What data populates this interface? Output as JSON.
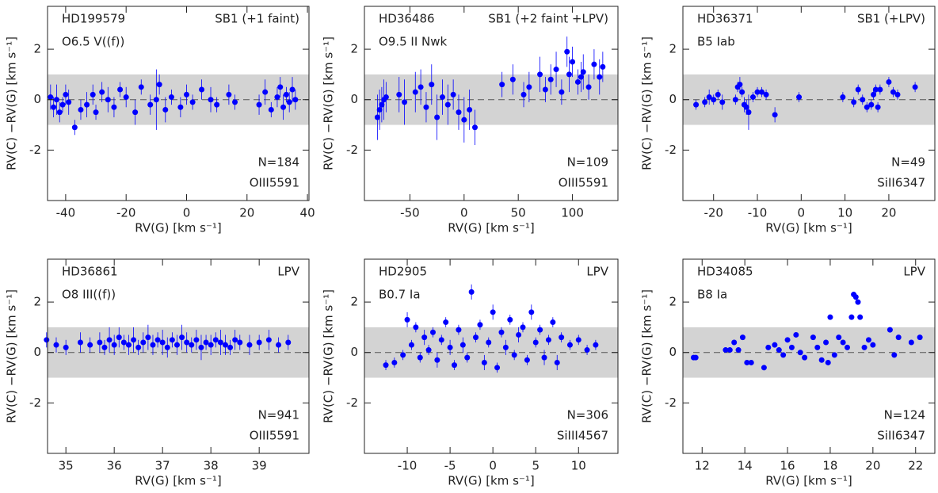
{
  "chart_data": [
    {
      "type": "scatter",
      "name": "HD199579",
      "subtitle": "O6.5 V((f))",
      "annotation": "SB1 (+1 faint)",
      "n_label": "N=184",
      "line_label": "OIII5591",
      "xlabel": "RV(G) [km s⁻¹]",
      "ylabel": "RV(C) −RV(G) [km s⁻¹]",
      "color": "#0000ff",
      "band": [
        -1,
        1
      ],
      "reference": 0,
      "xlim": [
        -46,
        40.5
      ],
      "ylim": [
        -4,
        3.7
      ],
      "xticks": [
        -40,
        -20,
        0,
        20,
        40
      ],
      "yticks": [
        -2,
        0,
        2
      ],
      "x": [
        -45,
        -44,
        -43,
        -42,
        -41,
        -40,
        -39,
        -37,
        -35,
        -33,
        -31,
        -30,
        -28,
        -26,
        -24,
        -22,
        -20,
        -17,
        -15,
        -12,
        -10,
        -9,
        -7,
        -5,
        -2,
        0,
        2,
        5,
        8,
        10,
        14,
        16,
        24,
        26,
        28,
        30,
        31,
        32,
        33,
        34,
        35,
        36
      ],
      "values": [
        0.1,
        -0.3,
        0,
        -0.5,
        -0.2,
        0.2,
        -0.1,
        -1.1,
        -0.4,
        -0.2,
        0.2,
        -0.5,
        0.3,
        0,
        -0.3,
        0.4,
        0.1,
        -0.5,
        0.5,
        -0.2,
        0,
        0.6,
        -0.4,
        0.1,
        -0.3,
        0.2,
        -0.1,
        0.4,
        0,
        -0.2,
        0.2,
        -0.1,
        -0.2,
        0.3,
        -0.4,
        0.1,
        0.5,
        -0.3,
        0.2,
        -0.1,
        0.4,
        0
      ],
      "errors": [
        0.5,
        0.4,
        0.6,
        0.4,
        0.3,
        0.4,
        0.5,
        0.3,
        0.4,
        0.5,
        0.4,
        0.3,
        0.4,
        0.5,
        0.4,
        0.3,
        0.4,
        0.5,
        0.3,
        0.4,
        1.2,
        0.4,
        0.5,
        0.3,
        0.4,
        0.4,
        0.3,
        0.4,
        0.5,
        0.3,
        0.4,
        0.3,
        0.4,
        0.5,
        0.3,
        0.4,
        0.4,
        0.5,
        0.3,
        0.4,
        0.5,
        0.4
      ]
    },
    {
      "type": "scatter",
      "name": "HD36486",
      "subtitle": "O9.5 II Nwk",
      "annotation": "SB1 (+2 faint +LPV)",
      "n_label": "N=109",
      "line_label": "OIII5591",
      "xlabel": "RV(G) [km s⁻¹]",
      "ylabel": "RV(C) −RV(G) [km s⁻¹]",
      "color": "#0000ff",
      "band": [
        -1,
        1
      ],
      "reference": 0,
      "xlim": [
        -92,
        142
      ],
      "ylim": [
        -4,
        3.7
      ],
      "xticks": [
        -50,
        0,
        50,
        100
      ],
      "yticks": [
        -2,
        0,
        2
      ],
      "x": [
        -80,
        -78,
        -76,
        -74,
        -72,
        -60,
        -55,
        -45,
        -40,
        -35,
        -30,
        -25,
        -20,
        -15,
        -10,
        -5,
        0,
        5,
        10,
        35,
        45,
        55,
        60,
        70,
        75,
        80,
        85,
        90,
        95,
        97,
        100,
        105,
        108,
        110,
        115,
        120,
        125,
        128
      ],
      "values": [
        -0.7,
        -0.4,
        -0.2,
        0,
        0.1,
        0.2,
        -0.1,
        0.3,
        0.5,
        -0.3,
        0.6,
        -0.7,
        0.1,
        -0.2,
        0.2,
        -0.5,
        -0.8,
        -0.4,
        -1.1,
        0.6,
        0.8,
        0.2,
        0.5,
        1.0,
        0.4,
        0.8,
        1.2,
        0.3,
        1.9,
        1.0,
        1.5,
        0.7,
        0.9,
        1.1,
        0.5,
        1.4,
        0.9,
        1.3
      ],
      "errors": [
        0.9,
        0.8,
        0.7,
        0.8,
        0.6,
        0.7,
        0.9,
        0.8,
        0.7,
        0.6,
        0.8,
        0.9,
        0.7,
        0.8,
        0.6,
        0.7,
        0.9,
        0.8,
        0.7,
        0.5,
        0.6,
        0.5,
        0.6,
        0.7,
        0.5,
        0.6,
        0.7,
        0.5,
        0.6,
        0.7,
        0.6,
        0.5,
        0.6,
        0.7,
        0.5,
        0.6,
        0.7,
        0.6
      ]
    },
    {
      "type": "scatter",
      "name": "HD36371",
      "subtitle": "B5 Iab",
      "annotation": "SB1 (+LPV)",
      "n_label": "N=49",
      "line_label": "SiII6347",
      "xlabel": "RV(G) [km s⁻¹]",
      "ylabel": "RV(C) −RV(G) [km s⁻¹]",
      "color": "#0000ff",
      "band": [
        -1,
        1
      ],
      "reference": 0,
      "xlim": [
        -27,
        30.5
      ],
      "ylim": [
        -4,
        3.7
      ],
      "xticks": [
        -20,
        -10,
        0,
        10,
        20
      ],
      "yticks": [
        -2,
        0,
        2
      ],
      "x": [
        -24,
        -22,
        -21,
        -20,
        -19,
        -18,
        -15,
        -14.5,
        -14,
        -13.5,
        -13,
        -12.5,
        -12,
        -11,
        -10,
        -9,
        -8,
        -6,
        -0.5,
        9.5,
        12,
        13,
        14,
        15,
        16,
        16.5,
        17,
        17.5,
        18,
        20,
        21,
        22,
        26
      ],
      "values": [
        -0.2,
        -0.1,
        0.1,
        0,
        0.2,
        -0.1,
        0,
        0.5,
        0.6,
        0.3,
        -0.2,
        -0.3,
        -0.5,
        0.1,
        0.3,
        0.3,
        0.2,
        -0.6,
        0.1,
        0.1,
        -0.1,
        0.4,
        0,
        -0.3,
        -0.2,
        0.2,
        0.4,
        -0.3,
        0.4,
        0.7,
        0.3,
        0.2,
        0.5
      ],
      "errors": [
        0.2,
        0.2,
        0.3,
        0.2,
        0.2,
        0.3,
        0.2,
        0.2,
        0.3,
        0.2,
        0.3,
        0.3,
        0.7,
        0.2,
        0.2,
        0.2,
        0.2,
        0.3,
        0.2,
        0.2,
        0.2,
        0.2,
        0.2,
        0.2,
        0.2,
        0.2,
        0.2,
        0.2,
        0.2,
        0.2,
        0.2,
        0.2,
        0.2
      ]
    },
    {
      "type": "scatter",
      "name": "HD36861",
      "subtitle": "O8 III((f))",
      "annotation": "LPV",
      "n_label": "N=941",
      "line_label": "OIII5591",
      "xlabel": "RV(G) [km s⁻¹]",
      "ylabel": "RV(C) −RV(G) [km s⁻¹]",
      "color": "#0000ff",
      "band": [
        -1,
        1
      ],
      "reference": 0,
      "xlim": [
        34.62,
        40.03
      ],
      "ylim": [
        -4,
        3.7
      ],
      "xticks": [
        35,
        36,
        37,
        38,
        39
      ],
      "yticks": [
        -2,
        0,
        2
      ],
      "x": [
        34.6,
        34.8,
        35.0,
        35.3,
        35.5,
        35.7,
        35.8,
        35.9,
        36.0,
        36.1,
        36.2,
        36.3,
        36.4,
        36.5,
        36.6,
        36.7,
        36.8,
        36.9,
        37.0,
        37.1,
        37.2,
        37.3,
        37.4,
        37.5,
        37.6,
        37.7,
        37.8,
        37.9,
        38.0,
        38.1,
        38.2,
        38.3,
        38.4,
        38.5,
        38.6,
        38.8,
        39.0,
        39.2,
        39.4,
        39.6
      ],
      "values": [
        0.5,
        0.3,
        0.2,
        0.4,
        0.3,
        0.4,
        0.2,
        0.5,
        0.3,
        0.6,
        0.4,
        0.3,
        0.5,
        0.2,
        0.4,
        0.6,
        0.3,
        0.5,
        0.4,
        0.2,
        0.5,
        0.3,
        0.6,
        0.4,
        0.3,
        0.5,
        0.2,
        0.4,
        0.3,
        0.5,
        0.4,
        0.3,
        0.2,
        0.5,
        0.4,
        0.3,
        0.4,
        0.5,
        0.3,
        0.4
      ],
      "errors": [
        0.3,
        0.3,
        0.3,
        0.4,
        0.3,
        0.4,
        0.3,
        0.5,
        0.4,
        0.4,
        0.3,
        0.4,
        0.5,
        0.3,
        0.4,
        0.5,
        0.4,
        0.3,
        0.5,
        0.4,
        0.3,
        0.4,
        0.5,
        0.4,
        0.3,
        0.4,
        0.5,
        0.3,
        0.4,
        0.3,
        0.5,
        0.4,
        0.3,
        0.4,
        0.3,
        0.4,
        0.3,
        0.4,
        0.3,
        0.3
      ]
    },
    {
      "type": "scatter",
      "name": "HD2905",
      "subtitle": "B0.7 Ia",
      "annotation": "LPV",
      "n_label": "N=306",
      "line_label": "SiIII4567",
      "xlabel": "RV(G) [km s⁻¹]",
      "ylabel": "RV(C) −RV(G) [km s⁻¹]",
      "color": "#0000ff",
      "band": [
        -1,
        1
      ],
      "reference": 0,
      "xlim": [
        -15,
        14.6
      ],
      "ylim": [
        -4,
        3.7
      ],
      "xticks": [
        -10,
        -5,
        0,
        5,
        10
      ],
      "yticks": [
        -2,
        0,
        2
      ],
      "x": [
        -12.5,
        -11.5,
        -10.5,
        -10,
        -9.5,
        -9,
        -8.5,
        -8,
        -7.5,
        -7,
        -6.5,
        -6,
        -5.5,
        -5,
        -4.5,
        -4,
        -3.5,
        -3,
        -2.5,
        -2,
        -1.5,
        -1,
        -0.5,
        0,
        0.5,
        1,
        1.5,
        2,
        2.5,
        3,
        3.5,
        4,
        4.5,
        5,
        5.5,
        6,
        6.5,
        7,
        7.5,
        8,
        9,
        10,
        11,
        12
      ],
      "values": [
        -0.5,
        -0.4,
        -0.1,
        1.3,
        0.3,
        1.0,
        -0.2,
        0.6,
        0.1,
        0.8,
        -0.3,
        0.5,
        1.2,
        0.2,
        -0.5,
        0.9,
        0.3,
        -0.2,
        2.4,
        0.6,
        1.1,
        -0.4,
        0.4,
        1.6,
        -0.6,
        0.8,
        0.2,
        1.3,
        -0.1,
        0.7,
        1.0,
        -0.3,
        1.6,
        0.4,
        0.9,
        -0.2,
        0.5,
        1.2,
        -0.4,
        0.6,
        0.3,
        0.5,
        0.1,
        0.3
      ],
      "errors": [
        0.2,
        0.2,
        0.2,
        0.3,
        0.2,
        0.2,
        0.2,
        0.3,
        0.2,
        0.2,
        0.3,
        0.2,
        0.2,
        0.3,
        0.2,
        0.2,
        0.3,
        0.2,
        0.3,
        0.2,
        0.2,
        0.3,
        0.2,
        0.3,
        0.2,
        0.2,
        0.3,
        0.2,
        0.2,
        0.3,
        0.2,
        0.2,
        0.3,
        0.2,
        0.2,
        0.3,
        0.2,
        0.2,
        0.3,
        0.2,
        0.2,
        0.2,
        0.2,
        0.2
      ]
    },
    {
      "type": "scatter",
      "name": "HD34085",
      "subtitle": "B8 Ia",
      "annotation": "LPV",
      "n_label": "N=124",
      "line_label": "SiII6347",
      "xlabel": "RV(G) [km s⁻¹]",
      "ylabel": "RV(C) −RV(G) [km s⁻¹]",
      "color": "#0000ff",
      "band": [
        -1,
        1
      ],
      "reference": 0,
      "xlim": [
        11.1,
        22.9
      ],
      "ylim": [
        -4,
        3.7
      ],
      "xticks": [
        12,
        14,
        16,
        18,
        20,
        22
      ],
      "yticks": [
        -2,
        0,
        2
      ],
      "x": [
        11.6,
        11.7,
        13.1,
        13.3,
        13.5,
        13.7,
        13.9,
        14.1,
        14.3,
        14.9,
        15.1,
        15.4,
        15.6,
        15.8,
        16.0,
        16.2,
        16.4,
        16.6,
        16.8,
        17.2,
        17.4,
        17.6,
        17.8,
        17.9,
        18.0,
        18.2,
        18.4,
        18.6,
        18.8,
        19.0,
        19.1,
        19.2,
        19.3,
        19.4,
        19.6,
        19.8,
        20.0,
        20.8,
        21.0,
        21.2,
        21.8,
        22.2
      ],
      "values": [
        -0.2,
        -0.2,
        0.1,
        0.1,
        0.4,
        0.1,
        0.6,
        -0.4,
        -0.4,
        -0.6,
        0.2,
        0.3,
        0.1,
        -0.1,
        0.5,
        0.2,
        0.7,
        0,
        -0.2,
        0.6,
        0.2,
        -0.3,
        0.4,
        -0.4,
        1.4,
        -0.1,
        0.6,
        0.4,
        0.2,
        1.4,
        2.3,
        2.2,
        2.0,
        1.4,
        0.2,
        0.5,
        0.3,
        0.9,
        -0.1,
        0.6,
        0.4,
        0.6
      ]
    }
  ]
}
